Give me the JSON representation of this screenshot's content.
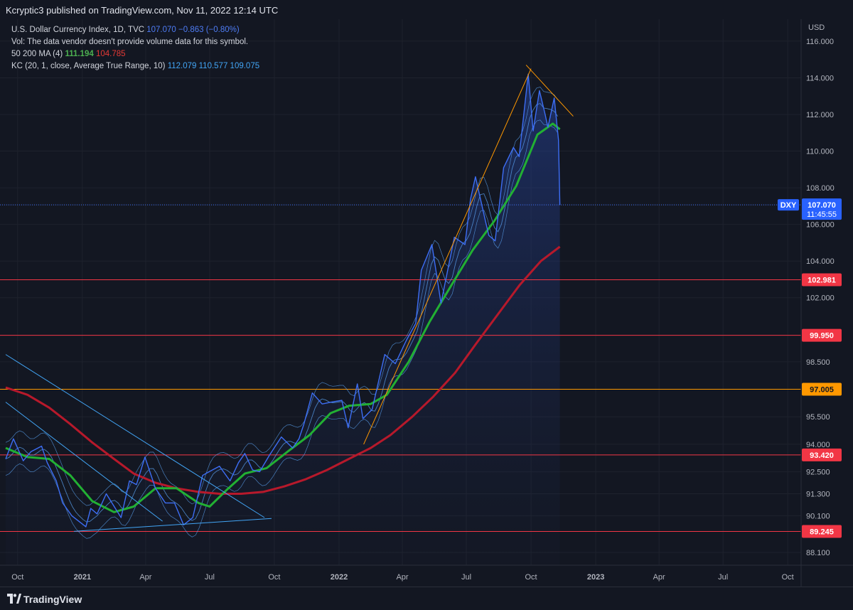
{
  "header": {
    "publish_text": "Kcryptic3 published on TradingView.com, Nov 11, 2022 12:14 UTC"
  },
  "legend": {
    "symbol_label": "U.S. Dollar Currency Index, 1D, TVC",
    "symbol_price": "107.070",
    "symbol_change": "−0.863 (−0.80%)",
    "vol_text": "Vol: The data vendor doesn't provide volume data for this symbol.",
    "ma_label": "50 200 MA (4)",
    "ma50_value": "111.194",
    "ma200_value": "104.785",
    "kc_label": "KC (20, 1, close, Average True Range, 10)",
    "kc_upper": "112.079",
    "kc_mid": "110.577",
    "kc_lower": "109.075"
  },
  "footer": {
    "brand": "TradingView"
  },
  "colors": {
    "background": "#131722",
    "price": "#3d6ef5",
    "ma50": "#22b033",
    "ma200": "#b7192b",
    "kc": "#5aa2f0",
    "level_red": "#f23645",
    "level_orange": "#ff9800",
    "trendline_blue": "#42a5f5",
    "trendline_orange": "#ff9800"
  },
  "chart_data": {
    "type": "line",
    "title": "U.S. Dollar Currency Index, 1D, TVC",
    "yunit": "USD",
    "ylim": [
      87.4,
      117.2
    ],
    "xlim": [
      "2020-09-14",
      "2023-10-20"
    ],
    "y_ticks": [
      "88.100",
      "89.245",
      "90.100",
      "91.300",
      "92.500",
      "93.420",
      "94.000",
      "95.500",
      "97.005",
      "98.500",
      "99.950",
      "102.000",
      "102.981",
      "104.000",
      "106.000",
      "107.070",
      "108.000",
      "110.000",
      "112.000",
      "114.000",
      "116.000"
    ],
    "x_ticks": [
      {
        "label": "Oct",
        "date": "2020-10-01",
        "bold": false
      },
      {
        "label": "2021",
        "date": "2021-01-01",
        "bold": true
      },
      {
        "label": "Apr",
        "date": "2021-04-01",
        "bold": false
      },
      {
        "label": "Jul",
        "date": "2021-07-01",
        "bold": false
      },
      {
        "label": "Oct",
        "date": "2021-10-01",
        "bold": false
      },
      {
        "label": "2022",
        "date": "2022-01-01",
        "bold": true
      },
      {
        "label": "Apr",
        "date": "2022-04-01",
        "bold": false
      },
      {
        "label": "Jul",
        "date": "2022-07-01",
        "bold": false
      },
      {
        "label": "Oct",
        "date": "2022-10-01",
        "bold": false
      },
      {
        "label": "2023",
        "date": "2023-01-01",
        "bold": true
      },
      {
        "label": "Apr",
        "date": "2023-04-01",
        "bold": false
      },
      {
        "label": "Jul",
        "date": "2023-07-01",
        "bold": false
      },
      {
        "label": "Oct",
        "date": "2023-10-01",
        "bold": false
      }
    ],
    "series": [
      {
        "name": "U.S. Dollar Currency Index",
        "color": "#3d6ef5",
        "points": [
          [
            "2020-09-14",
            93.2
          ],
          [
            "2020-09-25",
            94.3
          ],
          [
            "2020-10-09",
            93.1
          ],
          [
            "2020-10-20",
            93.6
          ],
          [
            "2020-11-04",
            93.9
          ],
          [
            "2020-11-12",
            93.0
          ],
          [
            "2020-11-25",
            92.0
          ],
          [
            "2020-12-04",
            90.8
          ],
          [
            "2020-12-17",
            90.1
          ],
          [
            "2021-01-06",
            89.5
          ],
          [
            "2021-01-13",
            90.5
          ],
          [
            "2021-01-22",
            90.2
          ],
          [
            "2021-02-04",
            91.3
          ],
          [
            "2021-02-25",
            90.0
          ],
          [
            "2021-03-09",
            92.0
          ],
          [
            "2021-03-19",
            91.8
          ],
          [
            "2021-03-31",
            93.3
          ],
          [
            "2021-04-15",
            91.6
          ],
          [
            "2021-04-29",
            90.8
          ],
          [
            "2021-05-12",
            90.8
          ],
          [
            "2021-05-25",
            89.6
          ],
          [
            "2021-06-07",
            90.0
          ],
          [
            "2021-06-21",
            92.3
          ],
          [
            "2021-06-30",
            92.5
          ],
          [
            "2021-07-15",
            92.8
          ],
          [
            "2021-07-30",
            92.0
          ],
          [
            "2021-08-11",
            93.0
          ],
          [
            "2021-08-20",
            93.5
          ],
          [
            "2021-08-31",
            92.6
          ],
          [
            "2021-09-10",
            92.5
          ],
          [
            "2021-09-24",
            93.4
          ],
          [
            "2021-10-11",
            94.4
          ],
          [
            "2021-10-27",
            93.8
          ],
          [
            "2021-11-05",
            94.3
          ],
          [
            "2021-11-12",
            95.1
          ],
          [
            "2021-11-24",
            96.8
          ],
          [
            "2021-12-08",
            96.2
          ],
          [
            "2021-12-21",
            96.3
          ],
          [
            "2022-01-05",
            96.4
          ],
          [
            "2022-01-14",
            94.9
          ],
          [
            "2022-01-27",
            97.3
          ],
          [
            "2022-02-04",
            95.4
          ],
          [
            "2022-02-17",
            95.9
          ],
          [
            "2022-03-07",
            98.9
          ],
          [
            "2022-03-22",
            98.4
          ],
          [
            "2022-04-07",
            99.7
          ],
          [
            "2022-04-20",
            100.6
          ],
          [
            "2022-04-28",
            103.5
          ],
          [
            "2022-05-13",
            104.9
          ],
          [
            "2022-05-26",
            101.7
          ],
          [
            "2022-06-14",
            105.3
          ],
          [
            "2022-06-29",
            104.9
          ],
          [
            "2022-07-07",
            107.4
          ],
          [
            "2022-07-14",
            108.6
          ],
          [
            "2022-07-28",
            106.2
          ],
          [
            "2022-08-02",
            105.4
          ],
          [
            "2022-08-11",
            105.1
          ],
          [
            "2022-08-23",
            109.1
          ],
          [
            "2022-09-06",
            110.2
          ],
          [
            "2022-09-14",
            109.7
          ],
          [
            "2022-09-27",
            114.2
          ],
          [
            "2022-10-04",
            111.1
          ],
          [
            "2022-10-13",
            113.3
          ],
          [
            "2022-10-21",
            112.0
          ],
          [
            "2022-10-25",
            111.3
          ],
          [
            "2022-11-03",
            112.9
          ],
          [
            "2022-11-09",
            110.6
          ],
          [
            "2022-11-11",
            107.07
          ]
        ]
      },
      {
        "name": "MA 50",
        "color": "#22b033",
        "points": [
          [
            "2020-09-14",
            93.8
          ],
          [
            "2020-10-15",
            93.3
          ],
          [
            "2020-11-15",
            93.2
          ],
          [
            "2020-12-15",
            92.3
          ],
          [
            "2021-01-15",
            90.9
          ],
          [
            "2021-02-15",
            90.3
          ],
          [
            "2021-03-15",
            90.6
          ],
          [
            "2021-04-15",
            91.6
          ],
          [
            "2021-05-15",
            91.6
          ],
          [
            "2021-06-15",
            90.8
          ],
          [
            "2021-07-01",
            90.6
          ],
          [
            "2021-07-25",
            91.5
          ],
          [
            "2021-08-20",
            92.4
          ],
          [
            "2021-09-20",
            92.7
          ],
          [
            "2021-10-20",
            93.6
          ],
          [
            "2021-11-20",
            94.5
          ],
          [
            "2021-12-20",
            95.7
          ],
          [
            "2022-01-15",
            96.1
          ],
          [
            "2022-02-15",
            96.2
          ],
          [
            "2022-03-10",
            96.7
          ],
          [
            "2022-04-10",
            98.5
          ],
          [
            "2022-05-10",
            100.7
          ],
          [
            "2022-06-10",
            102.7
          ],
          [
            "2022-07-10",
            104.6
          ],
          [
            "2022-08-10",
            106.2
          ],
          [
            "2022-09-10",
            108.1
          ],
          [
            "2022-10-10",
            110.9
          ],
          [
            "2022-11-01",
            111.5
          ],
          [
            "2022-11-11",
            111.194
          ]
        ]
      },
      {
        "name": "MA 200",
        "color": "#b7192b",
        "points": [
          [
            "2020-09-14",
            97.1
          ],
          [
            "2020-10-15",
            96.7
          ],
          [
            "2020-11-15",
            96.0
          ],
          [
            "2020-12-15",
            95.1
          ],
          [
            "2021-01-15",
            94.1
          ],
          [
            "2021-02-15",
            93.2
          ],
          [
            "2021-03-15",
            92.4
          ],
          [
            "2021-04-15",
            91.9
          ],
          [
            "2021-05-15",
            91.6
          ],
          [
            "2021-06-15",
            91.4
          ],
          [
            "2021-07-15",
            91.3
          ],
          [
            "2021-08-15",
            91.3
          ],
          [
            "2021-09-15",
            91.4
          ],
          [
            "2021-10-15",
            91.7
          ],
          [
            "2021-11-15",
            92.1
          ],
          [
            "2021-12-15",
            92.6
          ],
          [
            "2022-01-15",
            93.2
          ],
          [
            "2022-02-15",
            93.8
          ],
          [
            "2022-03-15",
            94.5
          ],
          [
            "2022-04-15",
            95.5
          ],
          [
            "2022-05-15",
            96.6
          ],
          [
            "2022-06-15",
            97.9
          ],
          [
            "2022-07-15",
            99.5
          ],
          [
            "2022-08-15",
            101.1
          ],
          [
            "2022-09-15",
            102.7
          ],
          [
            "2022-10-15",
            104.0
          ],
          [
            "2022-11-11",
            104.785
          ]
        ]
      }
    ],
    "levels": [
      {
        "value": 102.981,
        "label": "102.981",
        "color": "#f23645"
      },
      {
        "value": 99.95,
        "label": "99.950",
        "color": "#f23645"
      },
      {
        "value": 97.005,
        "label": "97.005",
        "color": "#ff9800"
      },
      {
        "value": 93.42,
        "label": "93.420",
        "color": "#f23645"
      },
      {
        "value": 89.245,
        "label": "89.245",
        "color": "#f23645"
      }
    ],
    "last_price": {
      "symbol": "DXY",
      "value": "107.070",
      "countdown": "11:45:55"
    },
    "trendlines": [
      {
        "color": "#42a5f5",
        "from": [
          "2020-09-14",
          98.9
        ],
        "to": [
          "2021-09-17",
          90.0
        ]
      },
      {
        "color": "#42a5f5",
        "from": [
          "2020-09-14",
          96.3
        ],
        "to": [
          "2021-04-25",
          89.8
        ]
      },
      {
        "color": "#42a5f5",
        "from": [
          "2020-12-20",
          89.25
        ],
        "to": [
          "2021-09-27",
          89.95
        ]
      },
      {
        "color": "#ff9800",
        "from": [
          "2022-02-05",
          94.0
        ],
        "to": [
          "2022-10-01",
          114.5
        ]
      },
      {
        "color": "#ff9800",
        "from": [
          "2022-09-24",
          114.7
        ],
        "to": [
          "2022-11-30",
          111.9
        ]
      }
    ]
  }
}
